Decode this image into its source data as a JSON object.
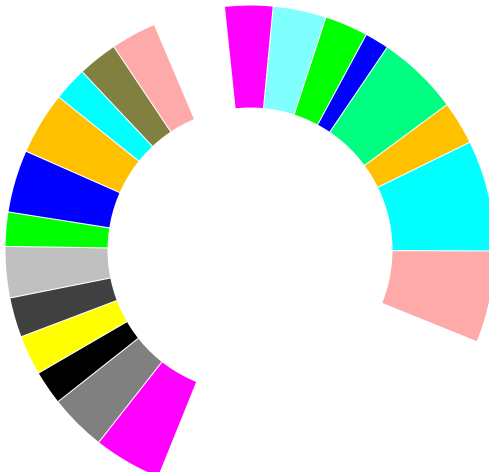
{
  "chart_data": {
    "type": "donut",
    "start_gap_degrees": 5,
    "sweep_degrees": 243,
    "segments": [
      {
        "value": 10,
        "color": "#ff00ff"
      },
      {
        "value": 11,
        "color": "#80ffff"
      },
      {
        "value": 9,
        "color": "#00ff00"
      },
      {
        "value": 5,
        "color": "#0000ff"
      },
      {
        "value": 17,
        "color": "#00ff80"
      },
      {
        "value": 9,
        "color": "#ffc000"
      },
      {
        "value": 23,
        "color": "#00ffff"
      },
      {
        "value": 19,
        "color": "#ffaaaa"
      },
      {
        "value": 0,
        "color": "#ffffff"
      },
      {
        "value": 0,
        "color": "#ffffff"
      },
      {
        "value": 12,
        "color": "#ff00ff"
      },
      {
        "value": 10,
        "color": "#808080"
      },
      {
        "value": 6,
        "color": "#000000"
      },
      {
        "value": 7,
        "color": "#ffff00"
      },
      {
        "value": 7,
        "color": "#404040"
      },
      {
        "value": 9,
        "color": "#c0c0c0"
      },
      {
        "value": 6,
        "color": "#00ff00"
      },
      {
        "value": 11,
        "color": "#0000ff"
      },
      {
        "value": 11,
        "color": "#ffc000"
      },
      {
        "value": 6,
        "color": "#00ffff"
      },
      {
        "value": 7,
        "color": "#808040"
      },
      {
        "value": 8,
        "color": "#ffaaaa"
      }
    ],
    "legend": "none",
    "title": ""
  }
}
